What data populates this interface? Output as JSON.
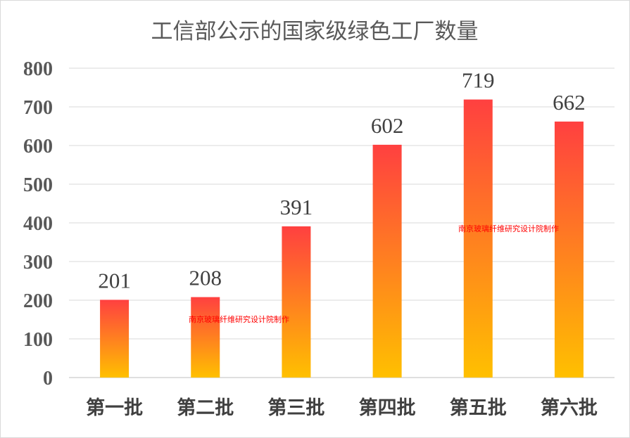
{
  "chart_data": {
    "type": "bar",
    "title": "工信部公示的国家级绿色工厂数量",
    "categories": [
      "第一批",
      "第二批",
      "第三批",
      "第四批",
      "第五批",
      "第六批"
    ],
    "values": [
      201,
      208,
      391,
      602,
      719,
      662
    ],
    "ylim": [
      0,
      800
    ],
    "yticks": [
      0,
      100,
      200,
      300,
      400,
      500,
      600,
      700,
      800
    ],
    "grid": true,
    "legend": "none",
    "bar_gradient": {
      "top": "#ff4040",
      "bottom": "#ffc000"
    },
    "watermarks": [
      "南京玻璃纤维研究设计院制作",
      "南京玻璃纤维研究设计院制作"
    ]
  }
}
